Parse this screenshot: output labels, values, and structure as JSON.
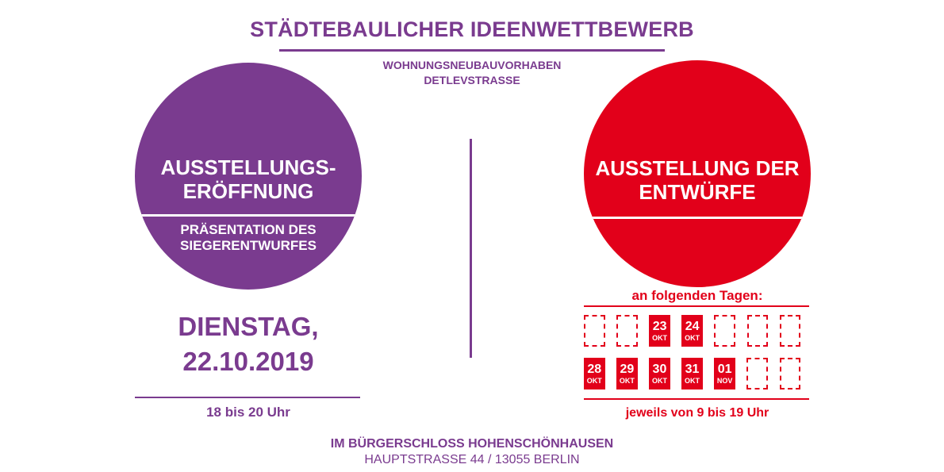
{
  "header": {
    "title": "STÄDTEBAULICHER IDEENWETTBEWERB",
    "subtitle_line1": "WOHNUNGSNEUBAUVORHABEN",
    "subtitle_line2": "DETLEVSTRASSE"
  },
  "left": {
    "circle_line1": "AUSSTELLUNGS-",
    "circle_line2": "ERÖFFNUNG",
    "circle_small1": "PRÄSENTATION DES",
    "circle_small2": "SIEGERENTWURFES",
    "day_line1": "DIENSTAG,",
    "day_line2": "22.10.2019",
    "time": "18 bis 20 Uhr"
  },
  "right": {
    "circle_line1": "AUSSTELLUNG DER",
    "circle_line2": "ENTWÜRFE",
    "days_title": "an folgenden Tagen:",
    "calendar": [
      [
        {
          "day": "",
          "month": ""
        },
        {
          "day": "",
          "month": ""
        },
        {
          "day": "23",
          "month": "OKT"
        },
        {
          "day": "24",
          "month": "OKT"
        },
        {
          "day": "",
          "month": ""
        },
        {
          "day": "",
          "month": ""
        },
        {
          "day": "",
          "month": ""
        }
      ],
      [
        {
          "day": "28",
          "month": "OKT"
        },
        {
          "day": "29",
          "month": "OKT"
        },
        {
          "day": "30",
          "month": "OKT"
        },
        {
          "day": "31",
          "month": "OKT"
        },
        {
          "day": "01",
          "month": "NOV"
        },
        {
          "day": "",
          "month": ""
        },
        {
          "day": "",
          "month": ""
        }
      ]
    ],
    "hours": "jeweils von 9 bis 19 Uhr"
  },
  "footer": {
    "venue": "IM BÜRGERSCHLOSS HOHENSCHÖNHAUSEN",
    "address": "HAUPTSTRASSE 44 / 13055 BERLIN"
  },
  "colors": {
    "purple": "#7a3b8f",
    "red": "#e2001a"
  }
}
